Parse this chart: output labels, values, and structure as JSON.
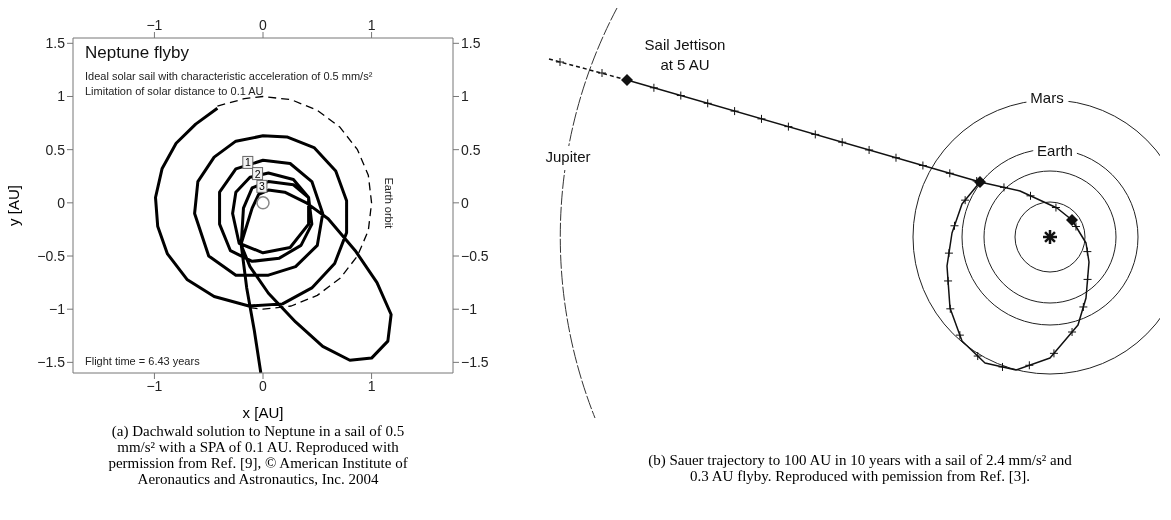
{
  "chart_data": [
    {
      "type": "line",
      "title": "Neptune flyby",
      "xlabel": "x [AU]",
      "ylabel": "y [AU]",
      "annotations": [
        "Ideal solar sail with characteristic acceleration of 0.5 mm/s²",
        "Limitation of solar distance to 0.1 AU",
        "Flight time = 6.43 years",
        "(a) Dachwald solution to Neptune in a sail of 0.5 mm/s² with a SPA of 0.1 AU. Reproduced with permission from Ref. [9], © American Institute of Aeronautics and Astronautics, Inc. 2004",
        "Earth orbit",
        {
          "text": "1",
          "x": -0.14,
          "y": 0.38
        },
        {
          "text": "2",
          "x": -0.05,
          "y": 0.275
        },
        {
          "text": "3",
          "x": -0.01,
          "y": 0.155
        }
      ],
      "series": [
        {
          "type": "line",
          "color": "#000000",
          "x": [
            -0.42,
            -0.62,
            -0.8,
            -0.93,
            -0.99,
            -0.97,
            -0.88,
            -0.7,
            -0.45,
            -0.13,
            0.18,
            0.45,
            0.66,
            0.77,
            0.77,
            0.67,
            0.47,
            0.22,
            0,
            -0.25,
            -0.45,
            -0.6,
            -0.63,
            -0.5,
            -0.25,
            0.05,
            0.3,
            0.5,
            0.55,
            0.45,
            0.25,
            0,
            -0.25,
            -0.4,
            -0.4,
            -0.3,
            -0.1,
            0.15,
            0.35,
            0.45,
            0.42,
            0.28,
            0.05,
            -0.12,
            -0.25,
            -0.28,
            -0.22,
            0,
            0.25,
            0.42,
            0.42,
            0.28,
            0.05,
            -0.1,
            -0.18,
            -0.2,
            -0.1,
            -0.04,
            0.05,
            0.2,
            0.4,
            0.6,
            0.85,
            1.05,
            1.18,
            1.15,
            1.0,
            0.8,
            0.55,
            0.3,
            0.05,
            -0.12,
            -0.2,
            -0.15,
            -0.08,
            -0.02
          ],
          "values": [
            0.89,
            0.74,
            0.56,
            0.32,
            0.05,
            -0.22,
            -0.48,
            -0.72,
            -0.88,
            -0.97,
            -0.95,
            -0.8,
            -0.57,
            -0.28,
            0.02,
            0.3,
            0.52,
            0.62,
            0.63,
            0.58,
            0.43,
            0.2,
            -0.1,
            -0.5,
            -0.68,
            -0.68,
            -0.6,
            -0.4,
            -0.1,
            0.2,
            0.37,
            0.4,
            0.32,
            0.1,
            -0.2,
            -0.45,
            -0.55,
            -0.52,
            -0.4,
            -0.2,
            0.05,
            0.22,
            0.28,
            0.24,
            0.1,
            -0.1,
            -0.38,
            -0.47,
            -0.42,
            -0.2,
            0.05,
            0.17,
            0.2,
            0.14,
            -0.05,
            -0.38,
            -0.05,
            0.08,
            0.12,
            0.1,
            0,
            -0.15,
            -0.45,
            -0.75,
            -1.05,
            -1.3,
            -1.46,
            -1.48,
            -1.35,
            -1.12,
            -0.85,
            -0.6,
            -0.4,
            -0.8,
            -1.2,
            -1.6
          ]
        },
        {
          "type": "line",
          "color": "#000000",
          "line_style": "dashed",
          "x": [
            -0.42,
            -0.17,
            0,
            0.26,
            0.5,
            0.71,
            0.87,
            0.97,
            1,
            0.97,
            0.87,
            0.71,
            0.5,
            0.26,
            0,
            -0.17
          ],
          "values": [
            0.91,
            0.98,
            1,
            0.97,
            0.87,
            0.71,
            0.5,
            0.26,
            0,
            -0.26,
            -0.5,
            -0.71,
            -0.87,
            -0.97,
            -1,
            -0.98
          ]
        },
        {
          "type": "scatter",
          "color": "#888888",
          "marker": "circle",
          "x": [
            0
          ],
          "values": [
            0
          ]
        }
      ],
      "xlim": [
        -1.75,
        1.75
      ],
      "ylim": [
        -1.6,
        1.55
      ],
      "xticks": [
        {
          "value": -1,
          "label": "−1"
        },
        0,
        1
      ],
      "yticks": [
        {
          "value": -1.5,
          "label": "−1.5"
        },
        {
          "value": -1,
          "label": "−1"
        },
        {
          "value": -0.5,
          "label": "−0.5"
        },
        0,
        0.5,
        1,
        1.5
      ],
      "x2lim": [
        -1.75,
        1.75
      ],
      "x2ticks": [
        {
          "value": -1,
          "label": "−1"
        },
        0,
        1
      ],
      "y2lim": [
        -1.6,
        1.55
      ],
      "y2ticks": [
        {
          "value": -1.5,
          "label": "−1.5"
        },
        {
          "value": -1,
          "label": "−1"
        },
        {
          "value": -0.5,
          "label": "−0.5"
        },
        0,
        0.5,
        1,
        1.5
      ]
    },
    {
      "type": "other",
      "annotations": [
        "Sail Jettison\nat 5 AU",
        "Jupiter",
        "Mars",
        "Earth",
        "(b) Sauer trajectory to 100 AU in 10 years with a sail of 2.4 mm/s² and 0.3 AU flyby. Reproduced with pemission from Ref. [3]."
      ]
    }
  ]
}
